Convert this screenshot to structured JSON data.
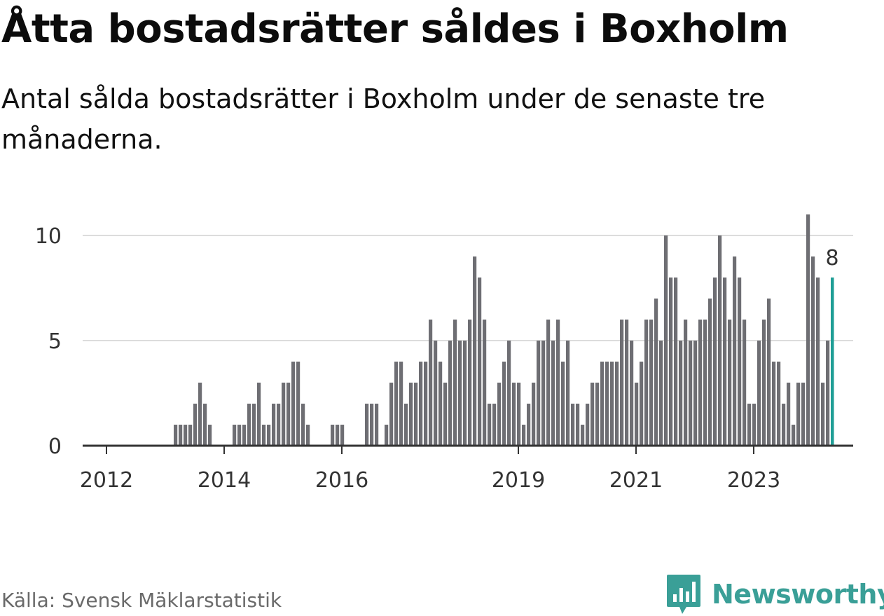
{
  "title": "Åtta bostadsrätter såldes i Boxholm",
  "subtitle": "Antal sålda bostadsrätter i Boxholm under de senaste tre månaderna.",
  "source": "Källa: Svensk Mäklarstatistik",
  "brand": {
    "name": "Newsworthy",
    "icon": "newsworthy-logo-icon",
    "color": "#3a9f97"
  },
  "colors": {
    "bar": "#6e6e73",
    "highlight": "#1f9e96",
    "grid": "#dcdcdc",
    "axis": "#333333"
  },
  "chart_data": {
    "type": "bar",
    "x_start": "2011-09",
    "x_unit": "month",
    "ylim": [
      0,
      11
    ],
    "y_ticks": [
      "0",
      "5",
      "10"
    ],
    "x_ticks": [
      "2012",
      "2014",
      "2016",
      "2019",
      "2021",
      "2023"
    ],
    "values": [
      0,
      0,
      0,
      0,
      0,
      0,
      0,
      0,
      0,
      0,
      0,
      0,
      0,
      0,
      0,
      0,
      0,
      0,
      1,
      1,
      1,
      1,
      2,
      3,
      2,
      1,
      0,
      0,
      0,
      0,
      1,
      1,
      1,
      2,
      2,
      3,
      1,
      1,
      2,
      2,
      3,
      3,
      4,
      4,
      2,
      1,
      0,
      0,
      0,
      0,
      1,
      1,
      1,
      0,
      0,
      0,
      0,
      2,
      2,
      2,
      0,
      1,
      3,
      4,
      4,
      2,
      3,
      3,
      4,
      4,
      6,
      5,
      4,
      3,
      5,
      6,
      5,
      5,
      6,
      9,
      8,
      6,
      2,
      2,
      3,
      4,
      5,
      3,
      3,
      1,
      2,
      3,
      5,
      5,
      6,
      5,
      6,
      4,
      5,
      2,
      2,
      1,
      2,
      3,
      3,
      4,
      4,
      4,
      4,
      6,
      6,
      5,
      3,
      4,
      6,
      6,
      7,
      5,
      10,
      8,
      8,
      5,
      6,
      5,
      5,
      6,
      6,
      7,
      8,
      10,
      8,
      6,
      9,
      8,
      6,
      2,
      2,
      5,
      6,
      7,
      4,
      4,
      2,
      3,
      1,
      3,
      3,
      11,
      9,
      8,
      3,
      5,
      8
    ],
    "highlight_label": "8"
  }
}
